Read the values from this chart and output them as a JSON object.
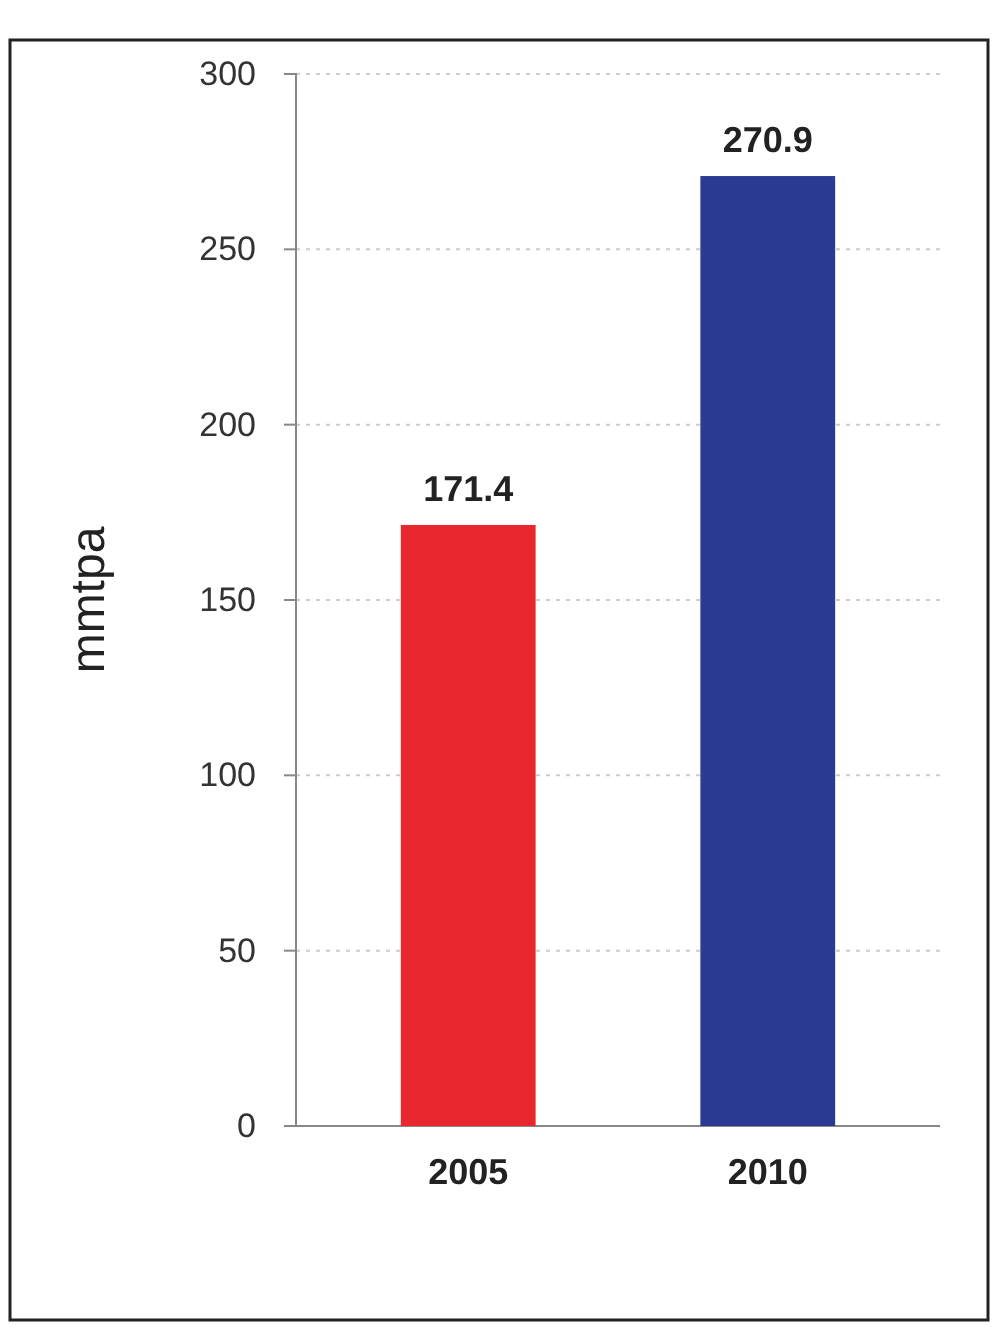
{
  "chart_data": {
    "type": "bar",
    "ylabel": "mmtpa",
    "categories": [
      "2005",
      "2010"
    ],
    "values": [
      171.4,
      270.9
    ],
    "colors": [
      "#e8282e",
      "#2b3a92"
    ],
    "ylim": [
      0,
      300
    ],
    "yticks": [
      0,
      50,
      100,
      150,
      200,
      250,
      300
    ],
    "grid": "y",
    "data_labels": true
  }
}
